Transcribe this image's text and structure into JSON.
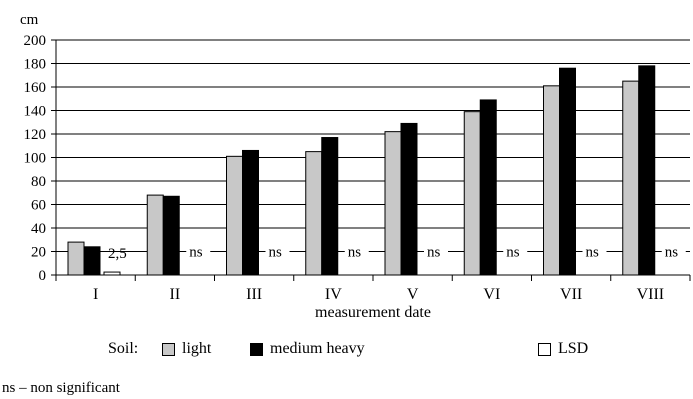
{
  "chart_data": {
    "type": "bar",
    "ylabel": "cm",
    "xlabel": "measurement date",
    "ylim": [
      0,
      200
    ],
    "yticks": [
      0,
      20,
      40,
      60,
      80,
      100,
      120,
      140,
      160,
      180,
      200
    ],
    "grid": true,
    "categories": [
      "I",
      "II",
      "III",
      "IV",
      "V",
      "VI",
      "VII",
      "VIII"
    ],
    "series": [
      {
        "name": "light",
        "color": "#c8c8c8",
        "values": [
          28,
          68,
          101,
          105,
          122,
          139,
          161,
          165
        ]
      },
      {
        "name": "medium heavy",
        "color": "#000000",
        "values": [
          24,
          67,
          106,
          117,
          129,
          149,
          176,
          178
        ]
      },
      {
        "name": "LSD",
        "color": "#ffffff",
        "values": [
          2.5,
          null,
          null,
          null,
          null,
          null,
          null,
          null
        ]
      }
    ],
    "lsd_labels": [
      "2,5",
      "ns",
      "ns",
      "ns",
      "ns",
      "ns",
      "ns",
      "ns"
    ],
    "legend_placement": "bottom"
  },
  "legend": {
    "prefix": "Soil:",
    "light": "light",
    "medium": "medium heavy",
    "lsd": "LSD"
  },
  "footnote": "ns – non significant"
}
